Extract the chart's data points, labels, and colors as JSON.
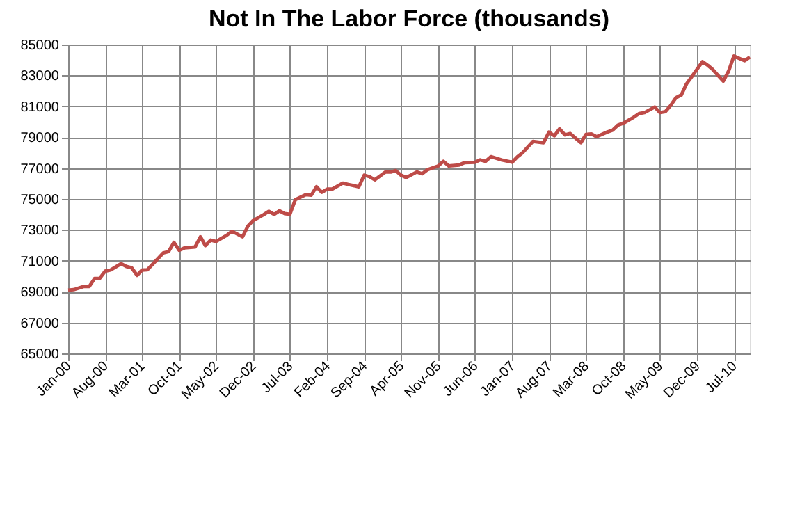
{
  "chart_data": {
    "type": "line",
    "title": "Not In The Labor Force (thousands)",
    "x": [
      "2000-01",
      "2000-02",
      "2000-04",
      "2000-05",
      "2000-06",
      "2000-07",
      "2000-08",
      "2000-09",
      "2000-11",
      "2000-12",
      "2001-01",
      "2001-02",
      "2001-03",
      "2001-04",
      "2001-06",
      "2001-07",
      "2001-08",
      "2001-09",
      "2001-10",
      "2001-11",
      "2002-01",
      "2002-02",
      "2002-03",
      "2002-04",
      "2002-05",
      "2002-07",
      "2002-08",
      "2002-10",
      "2002-11",
      "2002-12",
      "2003-02",
      "2003-03",
      "2003-04",
      "2003-05",
      "2003-06",
      "2003-07",
      "2003-08",
      "2003-10",
      "2003-11",
      "2003-12",
      "2004-01",
      "2004-02",
      "2004-03",
      "2004-05",
      "2004-06",
      "2004-08",
      "2004-09",
      "2004-10",
      "2004-11",
      "2005-01",
      "2005-02",
      "2005-03",
      "2005-04",
      "2005-05",
      "2005-07",
      "2005-08",
      "2005-09",
      "2005-11",
      "2005-12",
      "2006-01",
      "2006-03",
      "2006-04",
      "2006-06",
      "2006-07",
      "2006-08",
      "2006-09",
      "2006-11",
      "2007-01",
      "2007-02",
      "2007-03",
      "2007-05",
      "2007-07",
      "2007-08",
      "2007-09",
      "2007-10",
      "2007-11",
      "2007-12",
      "2008-02",
      "2008-03",
      "2008-04",
      "2008-05",
      "2008-07",
      "2008-08",
      "2008-09",
      "2008-10",
      "2008-12",
      "2009-01",
      "2009-02",
      "2009-04",
      "2009-05",
      "2009-06",
      "2009-07",
      "2009-08",
      "2009-09",
      "2009-10",
      "2009-11",
      "2010-01",
      "2010-02",
      "2010-03",
      "2010-05",
      "2010-06",
      "2010-07",
      "2010-09",
      "2010-10"
    ],
    "series": [
      {
        "color": "#be4b48",
        "values": [
          69100,
          69130,
          69340,
          69330,
          69850,
          69860,
          70330,
          70400,
          70810,
          70630,
          70540,
          70060,
          70390,
          70420,
          71140,
          71500,
          71590,
          72190,
          71680,
          71830,
          71890,
          72550,
          71980,
          72340,
          72250,
          72640,
          72910,
          72550,
          73240,
          73600,
          73990,
          74200,
          74000,
          74230,
          74050,
          74010,
          74950,
          75280,
          75250,
          75790,
          75430,
          75640,
          75640,
          76030,
          75940,
          75790,
          76540,
          76450,
          76240,
          76750,
          76740,
          76840,
          76540,
          76390,
          76750,
          76630,
          76900,
          77140,
          77440,
          77140,
          77200,
          77350,
          77380,
          77530,
          77440,
          77740,
          77530,
          77380,
          77740,
          77980,
          78730,
          78640,
          79330,
          79090,
          79540,
          79150,
          79240,
          78640,
          79180,
          79210,
          79030,
          79330,
          79450,
          79780,
          79900,
          80290,
          80530,
          80590,
          80950,
          80590,
          80650,
          81040,
          81550,
          81730,
          82450,
          82930,
          83890,
          83650,
          83380,
          82630,
          83290,
          84250,
          83950,
          84190
        ]
      }
    ],
    "xlim": [
      "2000-01",
      "2010-10"
    ],
    "xticks": [
      {
        "value": "2000-01",
        "label": "Jan-00"
      },
      {
        "value": "2000-08",
        "label": "Aug-00"
      },
      {
        "value": "2001-03",
        "label": "Mar-01"
      },
      {
        "value": "2001-10",
        "label": "Oct-01"
      },
      {
        "value": "2002-05",
        "label": "May-02"
      },
      {
        "value": "2002-12",
        "label": "Dec-02"
      },
      {
        "value": "2003-07",
        "label": "Jul-03"
      },
      {
        "value": "2004-02",
        "label": "Feb-04"
      },
      {
        "value": "2004-09",
        "label": "Sep-04"
      },
      {
        "value": "2005-04",
        "label": "Apr-05"
      },
      {
        "value": "2005-11",
        "label": "Nov-05"
      },
      {
        "value": "2006-06",
        "label": "Jun-06"
      },
      {
        "value": "2007-01",
        "label": "Jan-07"
      },
      {
        "value": "2007-08",
        "label": "Aug-07"
      },
      {
        "value": "2008-03",
        "label": "Mar-08"
      },
      {
        "value": "2008-10",
        "label": "Oct-08"
      },
      {
        "value": "2009-05",
        "label": "May-09"
      },
      {
        "value": "2009-12",
        "label": "Dec-09"
      },
      {
        "value": "2010-07",
        "label": "Jul-10"
      }
    ],
    "ylim": [
      65000,
      85000
    ],
    "yticks": [
      65000,
      67000,
      69000,
      71000,
      73000,
      75000,
      77000,
      79000,
      81000,
      83000,
      85000
    ],
    "grid": true,
    "marker": "none",
    "line_style": "solid"
  }
}
